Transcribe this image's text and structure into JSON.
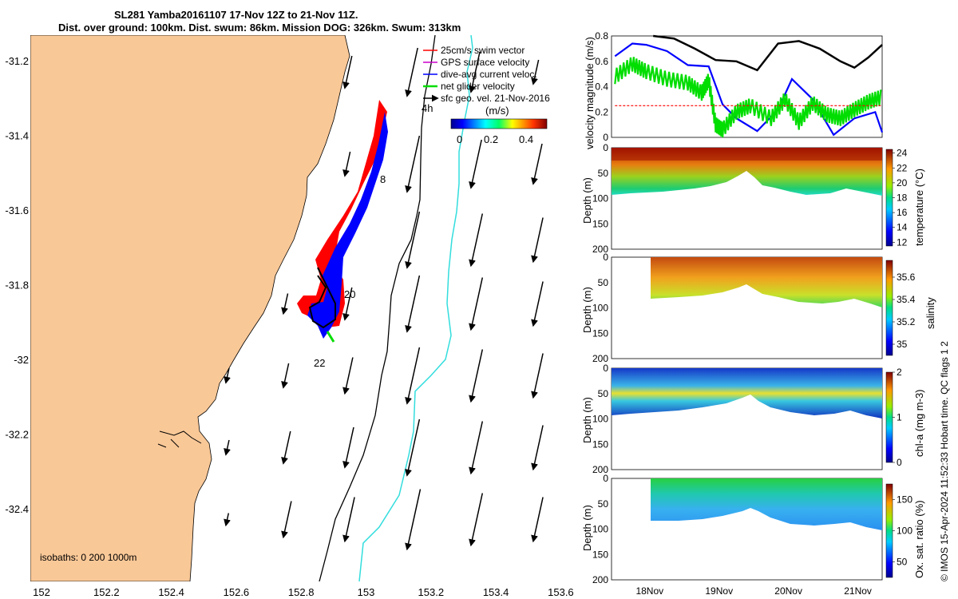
{
  "title": {
    "line1": "SL281 Yamba20161107 17-Nov 12Z to 21-Nov 11Z.",
    "line2": "Dist. over ground: 100km. Dist. swum: 86km. Mission DOG: 326km. Swum: 313km"
  },
  "map": {
    "xticks": [
      "152",
      "152.2",
      "152.4",
      "152.6",
      "152.8",
      "153",
      "153.2",
      "153.4",
      "153.6"
    ],
    "yticks": [
      "-31.2",
      "-31.4",
      "-31.6",
      "-31.8",
      "-32",
      "-32.2",
      "-32.4"
    ],
    "legend": [
      {
        "label": "25cm/s swim vector",
        "color": "#ff0000"
      },
      {
        "label": "GPS surface velocity",
        "color": "#cc00cc"
      },
      {
        "label": "dive-avg current veloc.",
        "color": "#0000ff"
      },
      {
        "label": "net glider velocity",
        "color": "#00dd00"
      },
      {
        "label": "sfc geo. vel. 21-Nov-2016",
        "color": "#000000"
      }
    ],
    "colorbar_label": "(m/s)",
    "colorbar_ticks": [
      "0",
      "0.2",
      "0.4"
    ],
    "annotations": [
      "4h",
      "8",
      "20",
      "22"
    ],
    "isobaths_label": "isobaths: 0   200  1000m",
    "colors": {
      "land": "#f9c897",
      "track_red": "#ff0000",
      "track_blue": "#0000ff",
      "contour_cyan": "#33dddd"
    }
  },
  "chart_data": [
    {
      "type": "line",
      "title": "",
      "ylabel": "velocity magnitude (m/s)",
      "ylim": [
        0,
        0.8
      ],
      "yticks": [
        "0",
        "0.2",
        "0.4",
        "0.6",
        "0.8"
      ],
      "xlim": [
        17.5,
        21.4
      ],
      "series": [
        {
          "name": "sfc geo. vel.",
          "color": "#000000",
          "x": [
            18.1,
            18.4,
            18.7,
            19.0,
            19.3,
            19.6,
            19.9,
            20.2,
            20.5,
            20.8,
            21.0,
            21.2,
            21.4
          ],
          "values": [
            0.8,
            0.78,
            0.7,
            0.61,
            0.6,
            0.53,
            0.74,
            0.76,
            0.7,
            0.6,
            0.55,
            0.63,
            0.73
          ]
        },
        {
          "name": "dive-avg current veloc.",
          "color": "#0000ff",
          "x": [
            17.55,
            17.8,
            18.0,
            18.3,
            18.6,
            18.9,
            19.1,
            19.3,
            19.6,
            19.9,
            20.1,
            20.4,
            20.7,
            21.0,
            21.3,
            21.4
          ],
          "values": [
            0.64,
            0.74,
            0.73,
            0.68,
            0.57,
            0.56,
            0.26,
            0.15,
            0.05,
            0.22,
            0.46,
            0.3,
            0.02,
            0.15,
            0.2,
            0.04
          ]
        },
        {
          "name": "net glider velocity",
          "color": "#00dd00",
          "x": [
            17.55,
            17.8,
            18.0,
            18.3,
            18.6,
            18.8,
            18.9,
            19.0,
            19.1,
            19.3,
            19.5,
            19.8,
            20.0,
            20.2,
            20.4,
            20.6,
            20.8,
            21.0,
            21.2,
            21.4
          ],
          "values": [
            0.48,
            0.58,
            0.52,
            0.46,
            0.43,
            0.35,
            0.45,
            0.1,
            0.06,
            0.2,
            0.25,
            0.15,
            0.3,
            0.12,
            0.27,
            0.18,
            0.15,
            0.22,
            0.28,
            0.32
          ]
        },
        {
          "name": "25cm/s swim",
          "color": "#ff0000",
          "x": [
            17.55,
            21.4
          ],
          "values": [
            0.25,
            0.25
          ]
        }
      ]
    },
    {
      "type": "heatmap",
      "ylabel": "Depth (m)",
      "colorbar_label": "temperature (°C)",
      "ylim": [
        200,
        0
      ],
      "yticks": [
        "0",
        "50",
        "100",
        "150",
        "200"
      ],
      "colorbar_ticks": [
        "12",
        "14",
        "16",
        "18",
        "20",
        "22",
        "24"
      ],
      "crange": [
        11.5,
        24.5
      ]
    },
    {
      "type": "heatmap",
      "ylabel": "Depth (m)",
      "colorbar_label": "salinity",
      "ylim": [
        200,
        0
      ],
      "yticks": [
        "0",
        "50",
        "100",
        "150",
        "200"
      ],
      "colorbar_ticks": [
        "35",
        "35.2",
        "35.4",
        "35.6"
      ],
      "crange": [
        34.9,
        35.75
      ]
    },
    {
      "type": "heatmap",
      "ylabel": "Depth (m)",
      "colorbar_label": "chl-a (mg m-3)",
      "ylim": [
        200,
        0
      ],
      "yticks": [
        "0",
        "50",
        "100",
        "150",
        "200"
      ],
      "colorbar_ticks": [
        "0",
        "1",
        "2"
      ],
      "crange": [
        0,
        2
      ]
    },
    {
      "type": "heatmap",
      "ylabel": "Depth (m)",
      "colorbar_label": "Ox. sat. ratio (%)",
      "ylim": [
        200,
        0
      ],
      "yticks": [
        "0",
        "50",
        "100",
        "150",
        "200"
      ],
      "colorbar_ticks": [
        "50",
        "100",
        "150"
      ],
      "crange": [
        25,
        175
      ]
    }
  ],
  "time_axis": {
    "ticks": [
      "18Nov",
      "19Nov",
      "20Nov",
      "21Nov"
    ]
  },
  "side_text": "© IMOS 15-Apr-2024 11:52:33 Hobart time. QC flags 1  2"
}
